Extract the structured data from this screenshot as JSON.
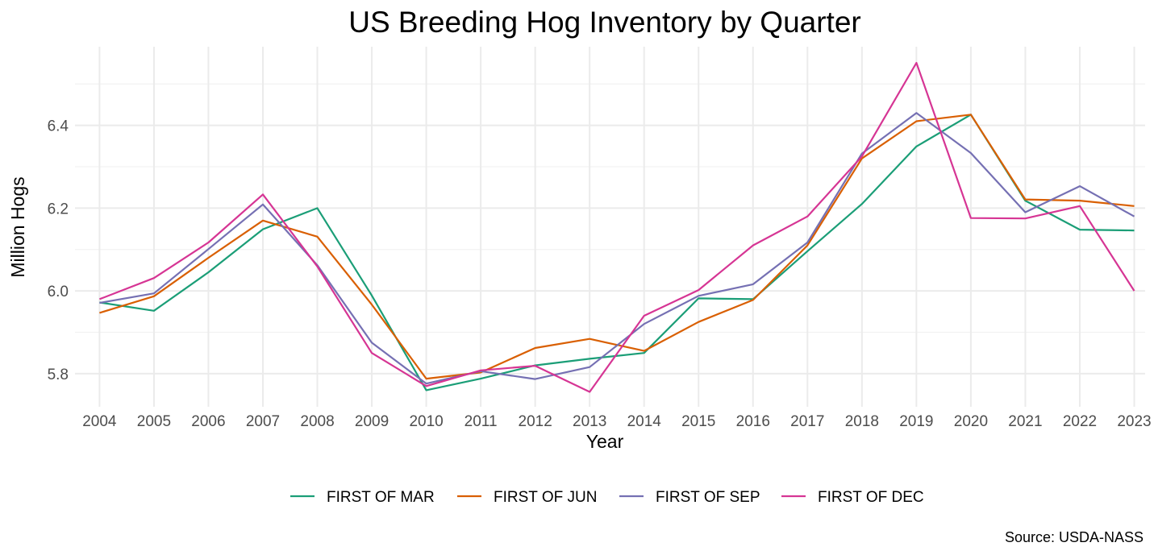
{
  "chart_data": {
    "type": "line",
    "title": "US Breeding Hog Inventory by Quarter",
    "xlabel": "Year",
    "ylabel": "Million Hogs",
    "caption": "Source: USDA-NASS",
    "legend_position": "bottom",
    "grid": true,
    "xlim": [
      2003.55,
      2023.2
    ],
    "ylim": [
      5.72,
      6.59
    ],
    "x": [
      2004,
      2005,
      2006,
      2007,
      2008,
      2009,
      2010,
      2011,
      2012,
      2013,
      2014,
      2015,
      2016,
      2017,
      2018,
      2019,
      2020,
      2021,
      2022,
      2023
    ],
    "x_tick_labels": [
      "2004",
      "2005",
      "2006",
      "2007",
      "2008",
      "2009",
      "2010",
      "2011",
      "2012",
      "2013",
      "2014",
      "2015",
      "2016",
      "2017",
      "2018",
      "2019",
      "2020",
      "2021",
      "2022",
      "2023"
    ],
    "y_ticks": [
      5.8,
      6.0,
      6.2,
      6.4
    ],
    "y_tick_labels": [
      "5.8",
      "6.0",
      "6.2",
      "6.4"
    ],
    "series": [
      {
        "name": "FIRST OF MAR",
        "color": "#1b9e77",
        "values": [
          5.972,
          5.952,
          6.045,
          6.149,
          6.2,
          5.989,
          5.76,
          5.788,
          5.82,
          5.836,
          5.85,
          5.982,
          5.98,
          6.096,
          6.21,
          6.349,
          6.426,
          6.218,
          6.148,
          6.146
        ]
      },
      {
        "name": "FIRST OF JUN",
        "color": "#d95f02",
        "values": [
          5.947,
          5.987,
          6.08,
          6.17,
          6.131,
          5.967,
          5.788,
          5.803,
          5.862,
          5.884,
          5.855,
          5.925,
          5.978,
          6.11,
          6.32,
          6.41,
          6.426,
          6.221,
          6.218,
          6.205
        ]
      },
      {
        "name": "FIRST OF SEP",
        "color": "#7570b3",
        "values": [
          5.971,
          5.994,
          6.101,
          6.209,
          6.062,
          5.875,
          5.776,
          5.806,
          5.787,
          5.816,
          5.92,
          5.988,
          6.016,
          6.117,
          6.332,
          6.43,
          6.333,
          6.19,
          6.253,
          6.18
        ]
      },
      {
        "name": "FIRST OF DEC",
        "color": "#d63594",
        "values": [
          5.98,
          6.031,
          6.117,
          6.233,
          6.059,
          5.85,
          5.77,
          5.808,
          5.819,
          5.756,
          5.94,
          6.002,
          6.11,
          6.18,
          6.325,
          6.551,
          6.176,
          6.175,
          6.205,
          6.0
        ]
      }
    ]
  }
}
